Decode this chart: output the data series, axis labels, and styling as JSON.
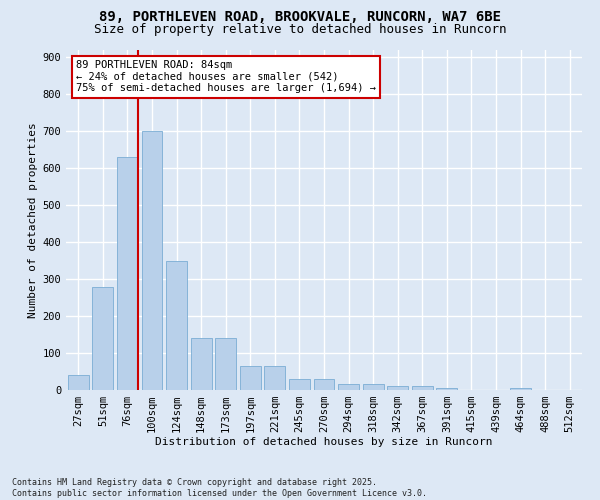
{
  "title_line1": "89, PORTHLEVEN ROAD, BROOKVALE, RUNCORN, WA7 6BE",
  "title_line2": "Size of property relative to detached houses in Runcorn",
  "xlabel": "Distribution of detached houses by size in Runcorn",
  "ylabel": "Number of detached properties",
  "bar_categories": [
    "27sqm",
    "51sqm",
    "76sqm",
    "100sqm",
    "124sqm",
    "148sqm",
    "173sqm",
    "197sqm",
    "221sqm",
    "245sqm",
    "270sqm",
    "294sqm",
    "318sqm",
    "342sqm",
    "367sqm",
    "391sqm",
    "415sqm",
    "439sqm",
    "464sqm",
    "488sqm",
    "512sqm"
  ],
  "bar_values": [
    40,
    280,
    630,
    700,
    350,
    140,
    140,
    65,
    65,
    30,
    30,
    15,
    15,
    10,
    10,
    5,
    0,
    0,
    5,
    0,
    0
  ],
  "bar_color": "#b8d0ea",
  "bar_edge_color": "#7aadd4",
  "background_color": "#dde8f5",
  "grid_color": "#ffffff",
  "annotation_box_text": "89 PORTHLEVEN ROAD: 84sqm\n← 24% of detached houses are smaller (542)\n75% of semi-detached houses are larger (1,694) →",
  "annotation_box_color": "#ffffff",
  "annotation_box_edge_color": "#cc0000",
  "vline_color": "#cc0000",
  "ylim": [
    0,
    920
  ],
  "yticks": [
    0,
    100,
    200,
    300,
    400,
    500,
    600,
    700,
    800,
    900
  ],
  "footnote": "Contains HM Land Registry data © Crown copyright and database right 2025.\nContains public sector information licensed under the Open Government Licence v3.0.",
  "title_fontsize": 10,
  "subtitle_fontsize": 9,
  "axis_label_fontsize": 8,
  "tick_fontsize": 7.5,
  "annotation_fontsize": 7.5
}
